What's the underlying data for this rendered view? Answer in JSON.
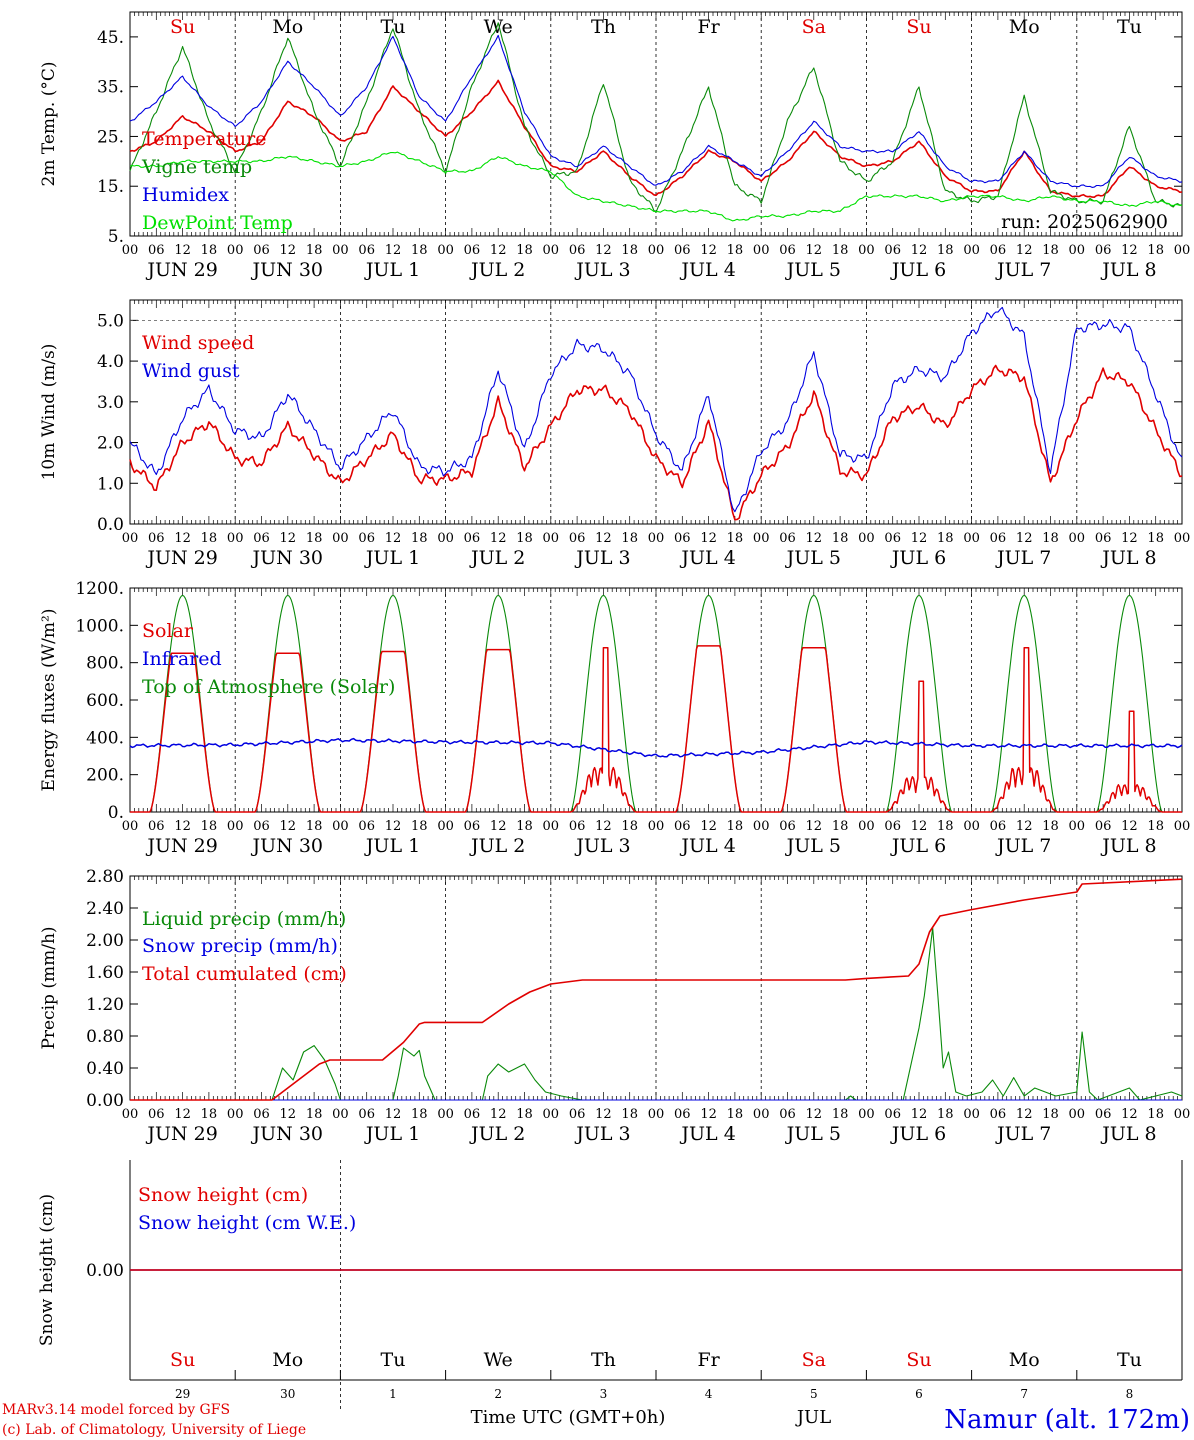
{
  "figure": {
    "days": [
      "JUN 29",
      "JUN 30",
      "JUL  1",
      "JUL  2",
      "JUL  3",
      "JUL  4",
      "JUL  5",
      "JUL  6",
      "JUL  7",
      "JUL  8"
    ],
    "weekdays": [
      "Su",
      "Mo",
      "Tu",
      "We",
      "Th",
      "Fr",
      "Sa",
      "Su",
      "Mo",
      "Tu"
    ],
    "weekday_colors": [
      "#e00000",
      "#000000",
      "#000000",
      "#000000",
      "#000000",
      "#000000",
      "#e00000",
      "#e00000",
      "#000000",
      "#000000"
    ],
    "hour_ticks": [
      "00",
      "06",
      "12",
      "18"
    ],
    "last_tick": "00",
    "bottom_day_numbers": [
      "29",
      "30",
      "1",
      "2",
      "3",
      "4",
      "5",
      "6",
      "7",
      "8"
    ],
    "month_label": "JUL",
    "xaxis_title": "Time UTC (GMT+0h)",
    "run_label": "run: 2025062900",
    "credit_line1": "MARv3.14 model forced by GFS",
    "credit_line2": "(c) Lab. of Climatology, University of Liege",
    "station": "Namur (alt. 172m)",
    "colors": {
      "red": "#e00000",
      "green": "#0a8a0a",
      "blue": "#0000e0",
      "lightgreen": "#00e000",
      "station": "#0000e0"
    }
  },
  "chart_data": [
    {
      "id": "temperature",
      "type": "line",
      "ylabel": "2m Temp. (°C)",
      "ylim": [
        5,
        50
      ],
      "yticks": [
        "5.",
        "15.",
        "25.",
        "35.",
        "45."
      ],
      "grid": "vertical dashed at day boundaries",
      "legend_position": "top-left",
      "x_days": [
        0,
        0.25,
        0.5,
        0.75,
        1,
        1.25,
        1.5,
        1.75,
        2,
        2.25,
        2.5,
        2.75,
        3,
        3.25,
        3.5,
        3.75,
        4,
        4.25,
        4.5,
        4.75,
        5,
        5.25,
        5.5,
        5.75,
        6,
        6.25,
        6.5,
        6.75,
        7,
        7.25,
        7.5,
        7.75,
        8,
        8.25,
        8.5,
        8.75,
        9,
        9.25,
        9.5,
        9.75,
        10
      ],
      "series": [
        {
          "name": "Temperature",
          "color": "red",
          "values": [
            22,
            24,
            29,
            26,
            22,
            24,
            32,
            29,
            24,
            26,
            35,
            30,
            25,
            30,
            36,
            27,
            19,
            18,
            22,
            17,
            13,
            17,
            22,
            20,
            16,
            20,
            26,
            21,
            19,
            20,
            24,
            17,
            14,
            14,
            22,
            14,
            13,
            13,
            19,
            15,
            14
          ]
        },
        {
          "name": "Vigne temp",
          "color": "green",
          "values": [
            18,
            30,
            43,
            28,
            18,
            30,
            45,
            30,
            19,
            32,
            47,
            30,
            18,
            35,
            48,
            27,
            17,
            18,
            36,
            16,
            10,
            22,
            35,
            15,
            12,
            28,
            39,
            20,
            16,
            20,
            35,
            14,
            12,
            13,
            33,
            14,
            12,
            12,
            27,
            12,
            11
          ]
        },
        {
          "name": "Humidex",
          "color": "blue",
          "values": [
            28,
            32,
            37,
            31,
            27,
            32,
            40,
            35,
            29,
            35,
            45,
            33,
            28,
            37,
            45,
            30,
            21,
            19,
            23,
            19,
            15,
            18,
            23,
            20,
            17,
            22,
            28,
            23,
            22,
            22,
            26,
            19,
            16,
            16,
            22,
            16,
            15,
            15,
            21,
            17,
            16
          ]
        },
        {
          "name": "DewPoint Temp",
          "color": "lightgreen",
          "values": [
            19,
            19,
            20,
            20,
            20,
            20,
            21,
            20,
            19,
            20,
            22,
            20,
            18,
            18,
            21,
            19,
            18,
            13,
            12,
            11,
            10,
            10,
            10,
            8,
            9,
            9,
            10,
            10,
            13,
            13,
            13,
            12,
            13,
            13,
            12,
            13,
            12,
            12,
            11,
            12,
            11
          ]
        }
      ]
    },
    {
      "id": "wind",
      "type": "line",
      "ylabel": "10m Wind (m/s)",
      "ylim": [
        0,
        5.5
      ],
      "yticks": [
        "0.0",
        "1.0",
        "2.0",
        "3.0",
        "4.0",
        "5.0"
      ],
      "reference_line": 5.0,
      "legend_position": "top-left",
      "x_days": [
        0,
        0.25,
        0.5,
        0.75,
        1,
        1.25,
        1.5,
        1.75,
        2,
        2.25,
        2.5,
        2.75,
        3,
        3.25,
        3.5,
        3.75,
        4,
        4.25,
        4.5,
        4.75,
        5,
        5.25,
        5.5,
        5.75,
        6,
        6.25,
        6.5,
        6.75,
        7,
        7.25,
        7.5,
        7.75,
        8,
        8.25,
        8.5,
        8.75,
        9,
        9.25,
        9.5,
        9.75,
        10
      ],
      "series": [
        {
          "name": "Wind speed",
          "color": "red",
          "values": [
            1.5,
            0.9,
            2.0,
            2.5,
            1.6,
            1.5,
            2.4,
            1.7,
            1.0,
            1.6,
            2.2,
            1.1,
            1.1,
            1.3,
            3.0,
            1.4,
            2.4,
            3.3,
            3.3,
            2.8,
            1.6,
            1.0,
            2.5,
            0.1,
            1.2,
            1.9,
            3.2,
            1.3,
            1.2,
            2.6,
            2.9,
            2.4,
            3.3,
            3.8,
            3.6,
            1.0,
            2.6,
            3.7,
            3.5,
            2.3,
            1.2
          ]
        },
        {
          "name": "Wind gust",
          "color": "blue",
          "values": [
            2.0,
            1.2,
            2.6,
            3.3,
            2.3,
            2.1,
            3.2,
            2.3,
            1.4,
            2.1,
            2.8,
            1.4,
            1.3,
            1.6,
            3.8,
            1.8,
            3.7,
            4.4,
            4.3,
            3.7,
            2.2,
            1.3,
            3.2,
            0.2,
            1.8,
            2.5,
            4.2,
            1.7,
            1.6,
            3.4,
            3.8,
            3.6,
            4.7,
            5.3,
            4.6,
            1.3,
            4.8,
            4.9,
            4.8,
            3.2,
            1.5
          ]
        }
      ]
    },
    {
      "id": "energy",
      "type": "line",
      "ylabel": "Energy fluxes (W/m²)",
      "ylim": [
        0,
        1200
      ],
      "yticks": [
        "0.",
        "200.",
        "400.",
        "600.",
        "800.",
        "1000.",
        "1200."
      ],
      "legend_position": "top-left",
      "sun_hours": [
        4.5,
        19.5
      ],
      "series": [
        {
          "name": "Solar",
          "color": "red",
          "daily_peak": [
            850,
            850,
            860,
            870,
            880,
            890,
            880,
            700,
            880,
            540
          ],
          "cloudy_days": [
            4,
            7,
            8,
            9
          ]
        },
        {
          "name": "Infrared",
          "color": "blue",
          "daily_mean": [
            355,
            360,
            385,
            375,
            370,
            300,
            320,
            375,
            355,
            355
          ]
        },
        {
          "name": "Top of Atmosphere (Solar)",
          "color": "green",
          "daily_peak": [
            1160,
            1160,
            1160,
            1160,
            1160,
            1160,
            1160,
            1160,
            1160,
            1160
          ]
        }
      ]
    },
    {
      "id": "precip",
      "type": "line",
      "ylabel": "Precip (mm/h)",
      "ylim": [
        0,
        2.8
      ],
      "yticks": [
        "0.00",
        "0.40",
        "0.80",
        "1.20",
        "1.60",
        "2.00",
        "2.40",
        "2.80"
      ],
      "legend_position": "top-left",
      "series": [
        {
          "name": "Liquid precip (mm/h)",
          "color": "green",
          "points": [
            [
              1.35,
              0
            ],
            [
              1.45,
              0.4
            ],
            [
              1.55,
              0.25
            ],
            [
              1.65,
              0.6
            ],
            [
              1.75,
              0.68
            ],
            [
              1.85,
              0.5
            ],
            [
              1.95,
              0.2
            ],
            [
              2.0,
              0
            ],
            [
              2.5,
              0
            ],
            [
              2.55,
              0.3
            ],
            [
              2.6,
              0.65
            ],
            [
              2.7,
              0.55
            ],
            [
              2.75,
              0.62
            ],
            [
              2.8,
              0.3
            ],
            [
              2.9,
              0
            ],
            [
              3.35,
              0
            ],
            [
              3.4,
              0.3
            ],
            [
              3.5,
              0.45
            ],
            [
              3.6,
              0.35
            ],
            [
              3.75,
              0.45
            ],
            [
              3.85,
              0.25
            ],
            [
              3.95,
              0.1
            ],
            [
              4.1,
              0.05
            ],
            [
              4.3,
              0
            ],
            [
              6.8,
              0
            ],
            [
              6.85,
              0.05
            ],
            [
              6.9,
              0
            ],
            [
              7.35,
              0
            ],
            [
              7.5,
              0.9
            ],
            [
              7.55,
              1.3
            ],
            [
              7.63,
              2.15
            ],
            [
              7.68,
              1.3
            ],
            [
              7.73,
              0.4
            ],
            [
              7.78,
              0.6
            ],
            [
              7.85,
              0.1
            ],
            [
              7.95,
              0.05
            ],
            [
              8.1,
              0.1
            ],
            [
              8.2,
              0.25
            ],
            [
              8.3,
              0.05
            ],
            [
              8.4,
              0.28
            ],
            [
              8.5,
              0.05
            ],
            [
              8.6,
              0.15
            ],
            [
              8.8,
              0.05
            ],
            [
              9.0,
              0.1
            ],
            [
              9.05,
              0.85
            ],
            [
              9.12,
              0.1
            ],
            [
              9.2,
              0
            ],
            [
              9.5,
              0.15
            ],
            [
              9.6,
              0
            ],
            [
              9.9,
              0.1
            ],
            [
              10,
              0.05
            ]
          ]
        },
        {
          "name": "Snow precip (mm/h)",
          "color": "blue",
          "points": [
            [
              0,
              0
            ],
            [
              10,
              0
            ]
          ]
        },
        {
          "name": "Total cumulated (cm)",
          "color": "red",
          "points": [
            [
              0,
              0
            ],
            [
              1.35,
              0
            ],
            [
              1.6,
              0.25
            ],
            [
              1.8,
              0.45
            ],
            [
              1.9,
              0.5
            ],
            [
              2.4,
              0.5
            ],
            [
              2.6,
              0.72
            ],
            [
              2.75,
              0.95
            ],
            [
              2.8,
              0.97
            ],
            [
              3.35,
              0.97
            ],
            [
              3.6,
              1.2
            ],
            [
              3.8,
              1.35
            ],
            [
              4.0,
              1.45
            ],
            [
              4.3,
              1.5
            ],
            [
              6.8,
              1.5
            ],
            [
              7.0,
              1.52
            ],
            [
              7.4,
              1.55
            ],
            [
              7.5,
              1.7
            ],
            [
              7.6,
              2.1
            ],
            [
              7.7,
              2.3
            ],
            [
              8.0,
              2.38
            ],
            [
              8.5,
              2.5
            ],
            [
              9.0,
              2.6
            ],
            [
              9.05,
              2.7
            ],
            [
              10,
              2.76
            ]
          ]
        }
      ]
    },
    {
      "id": "snow",
      "type": "line",
      "ylabel": "Snow height (cm)",
      "ylim": [
        -1,
        1
      ],
      "yticks": [
        "0.00"
      ],
      "legend_position": "top-left",
      "series": [
        {
          "name": "Snow height (cm)",
          "color": "red",
          "values": [
            0,
            0
          ]
        },
        {
          "name": "Snow height (cm W.E.)",
          "color": "blue",
          "values": [
            0,
            0
          ]
        }
      ]
    }
  ]
}
